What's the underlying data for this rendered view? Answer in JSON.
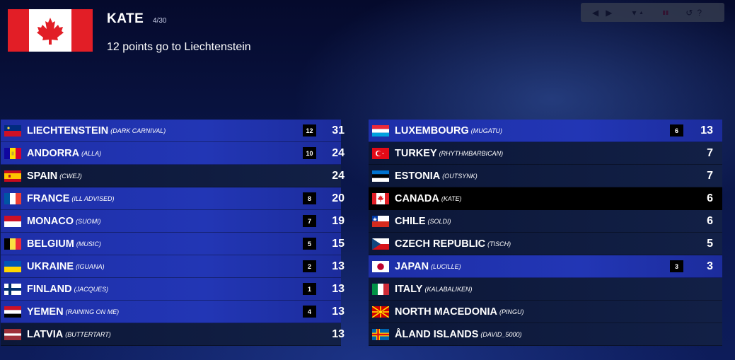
{
  "header": {
    "voter_name": "KATE",
    "voter_progress": "4/30",
    "announcement": "12 points go to Liechtenstein",
    "voter_flag_icon": "canada-flag-icon"
  },
  "controls": {
    "items": [
      "prev-icon",
      "next-icon",
      "sort-desc-icon",
      "sort-asc-icon",
      "pause-icon",
      "reset-icon",
      "help-icon"
    ],
    "glyphs": [
      "◀",
      "▶",
      "▾",
      "▴",
      "▮▮",
      "↺",
      "?"
    ]
  },
  "left_board": [
    {
      "country": "LIECHTENSTEIN",
      "participant": "(DARK CARNIVAL)",
      "points_given": "12",
      "total": "31",
      "style": "blue",
      "flag": "liechtenstein"
    },
    {
      "country": "ANDORRA",
      "participant": "(ALLA)",
      "points_given": "10",
      "total": "24",
      "style": "blue",
      "flag": "andorra"
    },
    {
      "country": "SPAIN",
      "participant": "(CWEJ)",
      "points_given": "",
      "total": "24",
      "style": "dark",
      "flag": "spain"
    },
    {
      "country": "FRANCE",
      "participant": "(ILL ADVISED)",
      "points_given": "8",
      "total": "20",
      "style": "blue",
      "flag": "france"
    },
    {
      "country": "MONACO",
      "participant": "(SUOMI)",
      "points_given": "7",
      "total": "19",
      "style": "blue",
      "flag": "monaco"
    },
    {
      "country": "BELGIUM",
      "participant": "(MUSIC)",
      "points_given": "5",
      "total": "15",
      "style": "blue",
      "flag": "belgium"
    },
    {
      "country": "UKRAINE",
      "participant": "(IGUANA)",
      "points_given": "2",
      "total": "13",
      "style": "blue",
      "flag": "ukraine"
    },
    {
      "country": "FINLAND",
      "participant": "(JACQUES)",
      "points_given": "1",
      "total": "13",
      "style": "blue",
      "flag": "finland"
    },
    {
      "country": "YEMEN",
      "participant": "(RAINING ON ME)",
      "points_given": "4",
      "total": "13",
      "style": "blue",
      "flag": "yemen"
    },
    {
      "country": "LATVIA",
      "participant": "(BUTTERTART)",
      "points_given": "",
      "total": "13",
      "style": "dark",
      "flag": "latvia"
    }
  ],
  "right_board": [
    {
      "country": "LUXEMBOURG",
      "participant": "(MUGATU)",
      "points_given": "6",
      "total": "13",
      "style": "blue",
      "flag": "luxembourg"
    },
    {
      "country": "TURKEY",
      "participant": "(RHYTHMBARBICAN)",
      "points_given": "",
      "total": "7",
      "style": "dark",
      "flag": "turkey"
    },
    {
      "country": "ESTONIA",
      "participant": "(OUTSYNK)",
      "points_given": "",
      "total": "7",
      "style": "dark",
      "flag": "estonia"
    },
    {
      "country": "CANADA",
      "participant": "(KATE)",
      "points_given": "",
      "total": "6",
      "style": "black",
      "flag": "canada"
    },
    {
      "country": "CHILE",
      "participant": "(SOLDI)",
      "points_given": "",
      "total": "6",
      "style": "dark",
      "flag": "chile"
    },
    {
      "country": "CZECH REPUBLIC",
      "participant": "(TISCH)",
      "points_given": "",
      "total": "5",
      "style": "dark",
      "flag": "czech"
    },
    {
      "country": "JAPAN",
      "participant": "(LUCILLE)",
      "points_given": "3",
      "total": "3",
      "style": "blue",
      "flag": "japan"
    },
    {
      "country": "ITALY",
      "participant": "(KALABALIKEN)",
      "points_given": "",
      "total": "",
      "style": "dark",
      "flag": "italy"
    },
    {
      "country": "NORTH MACEDONIA",
      "participant": "(PINGU)",
      "points_given": "",
      "total": "",
      "style": "dark",
      "flag": "north-macedonia"
    },
    {
      "country": "ÅLAND ISLANDS",
      "participant": "(DAVID_5000)",
      "points_given": "",
      "total": "",
      "style": "dark",
      "flag": "aland"
    }
  ]
}
